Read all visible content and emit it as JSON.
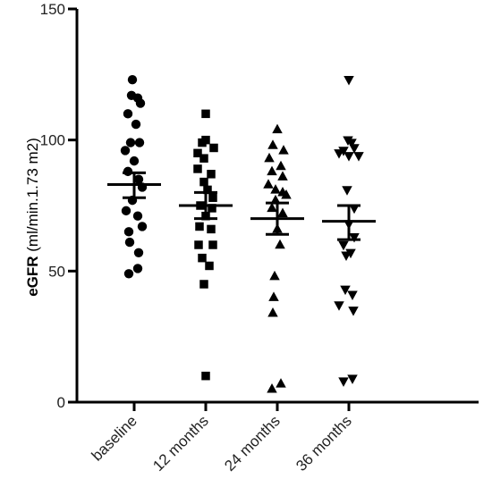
{
  "chart_data": {
    "type": "scatter",
    "title": "",
    "xlabel": "",
    "ylabel_bold": "eGFR",
    "ylabel_rest": " (ml/min.1.73 m2)",
    "ylim": [
      0,
      150
    ],
    "yticks": [
      0,
      50,
      100,
      150
    ],
    "categories": [
      "baseline",
      "12 months",
      "24 months",
      "36 months"
    ],
    "series": [
      {
        "category": "baseline",
        "marker": "circle",
        "mean": 83,
        "sem_upper": 87.5,
        "sem_lower": 78,
        "points": [
          {
            "v": 123,
            "o": -2
          },
          {
            "v": 117,
            "o": -3
          },
          {
            "v": 116,
            "o": 4
          },
          {
            "v": 114,
            "o": 7
          },
          {
            "v": 110,
            "o": -7
          },
          {
            "v": 106,
            "o": 2
          },
          {
            "v": 99,
            "o": -4
          },
          {
            "v": 99,
            "o": 6
          },
          {
            "v": 96,
            "o": -10
          },
          {
            "v": 92,
            "o": 0
          },
          {
            "v": 88,
            "o": -7
          },
          {
            "v": 85,
            "o": 5
          },
          {
            "v": 82,
            "o": 9
          },
          {
            "v": 77,
            "o": -2
          },
          {
            "v": 73,
            "o": -9
          },
          {
            "v": 71,
            "o": 4
          },
          {
            "v": 67,
            "o": 9
          },
          {
            "v": 65,
            "o": -6
          },
          {
            "v": 61,
            "o": -5
          },
          {
            "v": 57,
            "o": 5
          },
          {
            "v": 51,
            "o": 4
          },
          {
            "v": 49,
            "o": -6
          }
        ]
      },
      {
        "category": "12 months",
        "marker": "square",
        "mean": 75,
        "sem_upper": 80,
        "sem_lower": 70,
        "points": [
          {
            "v": 110,
            "o": 0
          },
          {
            "v": 100,
            "o": 0
          },
          {
            "v": 99,
            "o": -4
          },
          {
            "v": 97,
            "o": 9
          },
          {
            "v": 95,
            "o": -9
          },
          {
            "v": 93,
            "o": -2
          },
          {
            "v": 89,
            "o": -9
          },
          {
            "v": 87,
            "o": 6
          },
          {
            "v": 84,
            "o": -2
          },
          {
            "v": 81,
            "o": 2
          },
          {
            "v": 78,
            "o": 8
          },
          {
            "v": 75,
            "o": -6
          },
          {
            "v": 74,
            "o": 7
          },
          {
            "v": 71,
            "o": 0
          },
          {
            "v": 67,
            "o": -7
          },
          {
            "v": 66,
            "o": 6
          },
          {
            "v": 60,
            "o": 8
          },
          {
            "v": 60,
            "o": -8
          },
          {
            "v": 52,
            "o": 4
          },
          {
            "v": 55,
            "o": -4
          },
          {
            "v": 45,
            "o": -2
          },
          {
            "v": 10,
            "o": 0
          }
        ]
      },
      {
        "category": "24 months",
        "marker": "triangle-up",
        "mean": 70,
        "sem_upper": 76,
        "sem_lower": 64,
        "points": [
          {
            "v": 104,
            "o": 0
          },
          {
            "v": 98,
            "o": -5
          },
          {
            "v": 96,
            "o": 7
          },
          {
            "v": 93,
            "o": -9
          },
          {
            "v": 90,
            "o": 4
          },
          {
            "v": 88,
            "o": -6
          },
          {
            "v": 86,
            "o": 6
          },
          {
            "v": 83,
            "o": -10
          },
          {
            "v": 81,
            "o": -2
          },
          {
            "v": 80,
            "o": 6
          },
          {
            "v": 79,
            "o": 10
          },
          {
            "v": 77,
            "o": -2
          },
          {
            "v": 74,
            "o": -6
          },
          {
            "v": 72,
            "o": 6
          },
          {
            "v": 66,
            "o": 0
          },
          {
            "v": 60,
            "o": 3
          },
          {
            "v": 48,
            "o": -3
          },
          {
            "v": 40,
            "o": -4
          },
          {
            "v": 34,
            "o": -5
          },
          {
            "v": 7,
            "o": 4
          },
          {
            "v": 5,
            "o": -6
          }
        ]
      },
      {
        "category": "36 months",
        "marker": "triangle-down",
        "mean": 69,
        "sem_upper": 75,
        "sem_lower": 62,
        "points": [
          {
            "v": 123,
            "o": 0
          },
          {
            "v": 100,
            "o": -1
          },
          {
            "v": 99,
            "o": 3
          },
          {
            "v": 97,
            "o": 6
          },
          {
            "v": 96,
            "o": -6
          },
          {
            "v": 95,
            "o": -11
          },
          {
            "v": 94,
            "o": 11
          },
          {
            "v": 94,
            "o": 0
          },
          {
            "v": 81,
            "o": -2
          },
          {
            "v": 74,
            "o": 6
          },
          {
            "v": 68,
            "o": 0
          },
          {
            "v": 63,
            "o": 6
          },
          {
            "v": 60,
            "o": -6
          },
          {
            "v": 57,
            "o": 2
          },
          {
            "v": 56,
            "o": -3
          },
          {
            "v": 43,
            "o": -4
          },
          {
            "v": 41,
            "o": 4
          },
          {
            "v": 37,
            "o": -11
          },
          {
            "v": 35,
            "o": 5
          },
          {
            "v": 9,
            "o": 4
          },
          {
            "v": 8,
            "o": -6
          }
        ]
      }
    ],
    "grid": false,
    "legend": "none"
  }
}
